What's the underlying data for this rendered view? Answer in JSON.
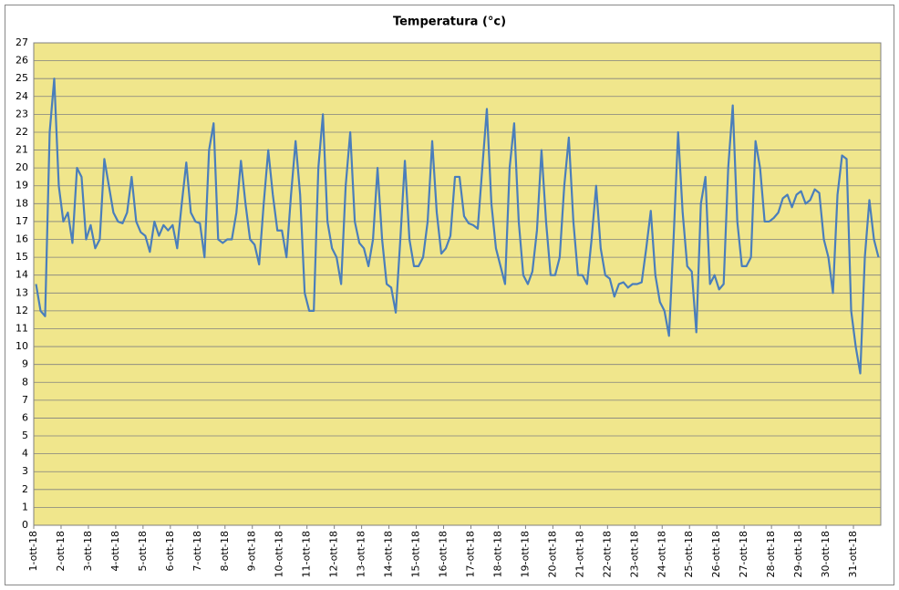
{
  "chart_data": {
    "type": "line",
    "title": "Temperatura (°c)",
    "categories": [
      "1-ott-18",
      null,
      null,
      null,
      null,
      null,
      "2-ott-18",
      null,
      null,
      null,
      null,
      null,
      "3-ott-18",
      null,
      null,
      null,
      null,
      null,
      "4-ott-18",
      null,
      null,
      null,
      null,
      null,
      "5-ott-18",
      null,
      null,
      null,
      null,
      null,
      "6-ott-18",
      null,
      null,
      null,
      null,
      null,
      "7-ott-18",
      null,
      null,
      null,
      null,
      null,
      "8-ott-18",
      null,
      null,
      null,
      null,
      null,
      "9-ott-18",
      null,
      null,
      null,
      null,
      null,
      "10-ott-18",
      null,
      null,
      null,
      null,
      null,
      "11-ott-18",
      null,
      null,
      null,
      null,
      null,
      "12-ott-18",
      null,
      null,
      null,
      null,
      null,
      "13-ott-18",
      null,
      null,
      null,
      null,
      null,
      "14-ott-18",
      null,
      null,
      null,
      null,
      null,
      "15-ott-18",
      null,
      null,
      null,
      null,
      null,
      "16-ott-18",
      null,
      null,
      null,
      null,
      null,
      "17-ott-18",
      null,
      null,
      null,
      null,
      null,
      "18-ott-18",
      null,
      null,
      null,
      null,
      null,
      "19-ott-18",
      null,
      null,
      null,
      null,
      null,
      "20-ott-18",
      null,
      null,
      null,
      null,
      null,
      "21-ott-18",
      null,
      null,
      null,
      null,
      null,
      "22-ott-18",
      null,
      null,
      null,
      null,
      null,
      "23-ott-18",
      null,
      null,
      null,
      null,
      null,
      "24-ott-18",
      null,
      null,
      null,
      null,
      null,
      "25-ott-18",
      null,
      null,
      null,
      null,
      null,
      "26-ott-18",
      null,
      null,
      null,
      null,
      null,
      "27-ott-18",
      null,
      null,
      null,
      null,
      null,
      "28-ott-18",
      null,
      null,
      null,
      null,
      null,
      "29-ott-18",
      null,
      null,
      null,
      null,
      null,
      "30-ott-18",
      null,
      null,
      null,
      null,
      null,
      "31-ott-18",
      null,
      null,
      null,
      null,
      null
    ],
    "values": [
      13.5,
      12,
      11.7,
      22,
      25,
      19,
      17,
      17.5,
      15.8,
      20,
      19.5,
      16,
      16.8,
      15.5,
      16,
      20.5,
      19,
      17.5,
      17,
      16.9,
      17.5,
      19.5,
      17,
      16.4,
      16.2,
      15.3,
      17,
      16.2,
      16.8,
      16.5,
      16.8,
      15.5,
      18,
      20.3,
      17.5,
      17,
      16.9,
      15,
      21,
      22.5,
      16,
      15.8,
      16,
      16,
      17.5,
      20.4,
      18,
      16,
      15.7,
      14.6,
      18,
      21,
      18.5,
      16.5,
      16.5,
      15,
      18.5,
      21.5,
      18.5,
      13,
      12,
      12,
      20,
      23,
      17,
      15.5,
      15,
      13.5,
      19,
      22,
      17,
      15.8,
      15.5,
      14.5,
      16,
      20,
      16,
      13.5,
      13.3,
      11.9,
      16,
      20.4,
      16,
      14.5,
      14.5,
      15,
      17,
      21.5,
      17.5,
      15.2,
      15.5,
      16.2,
      19.5,
      19.5,
      17.3,
      16.9,
      16.8,
      16.6,
      20,
      23.3,
      18,
      15.5,
      14.5,
      13.5,
      20,
      22.5,
      17,
      14,
      13.5,
      14.2,
      16.5,
      21,
      17,
      14,
      14,
      15,
      19,
      21.7,
      17,
      14,
      14,
      13.5,
      16,
      19,
      15.5,
      14,
      13.8,
      12.8,
      13.5,
      13.6,
      13.3,
      13.5,
      13.5,
      13.6,
      15.5,
      17.6,
      14,
      12.5,
      12,
      10.6,
      16,
      22,
      17.5,
      14.5,
      14.2,
      10.8,
      18,
      19.5,
      13.5,
      14,
      13.2,
      13.5,
      20,
      23.5,
      17,
      14.5,
      14.5,
      15,
      21.5,
      20,
      17,
      17,
      17.2,
      17.5,
      18.3,
      18.5,
      17.8,
      18.5,
      18.7,
      18,
      18.2,
      18.8,
      18.6,
      16,
      15,
      13,
      18.5,
      20.7,
      20.5,
      12,
      10,
      8.5,
      15,
      18.2,
      16,
      15
    ],
    "color": "#4a7ebb",
    "background": "#f0e68c",
    "ylim": [
      0,
      27
    ],
    "yticks": [
      0,
      1,
      2,
      3,
      4,
      5,
      6,
      7,
      8,
      9,
      10,
      11,
      12,
      13,
      14,
      15,
      16,
      17,
      18,
      19,
      20,
      21,
      22,
      23,
      24,
      25,
      26,
      27
    ],
    "grid": true
  }
}
